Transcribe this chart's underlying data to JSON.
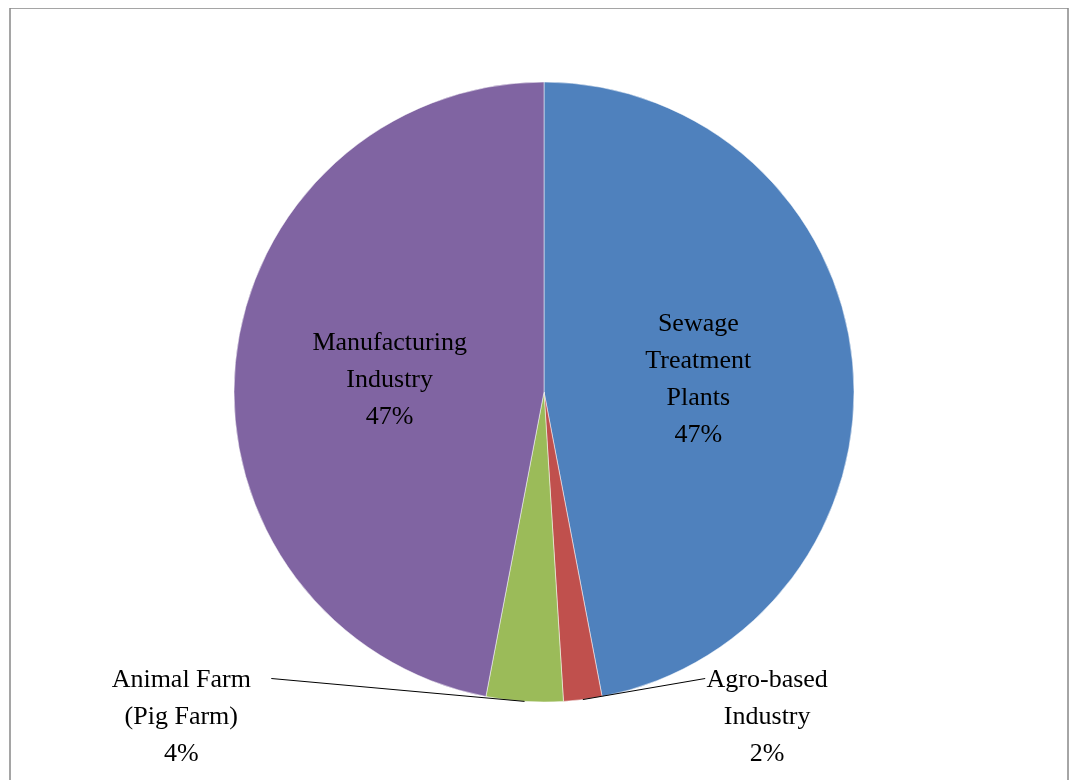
{
  "chart_data": {
    "type": "pie",
    "categories": [
      "Sewage Treatment Plants",
      "Agro-based Industry",
      "Animal Farm (Pig Farm)",
      "Manufacturing Industry"
    ],
    "values": [
      47,
      2,
      4,
      47
    ],
    "colors": [
      "#4f81bd",
      "#c0504d",
      "#9bbb59",
      "#8064a2"
    ],
    "value_labels": [
      "47%",
      "2%",
      "4%",
      "47%"
    ]
  }
}
